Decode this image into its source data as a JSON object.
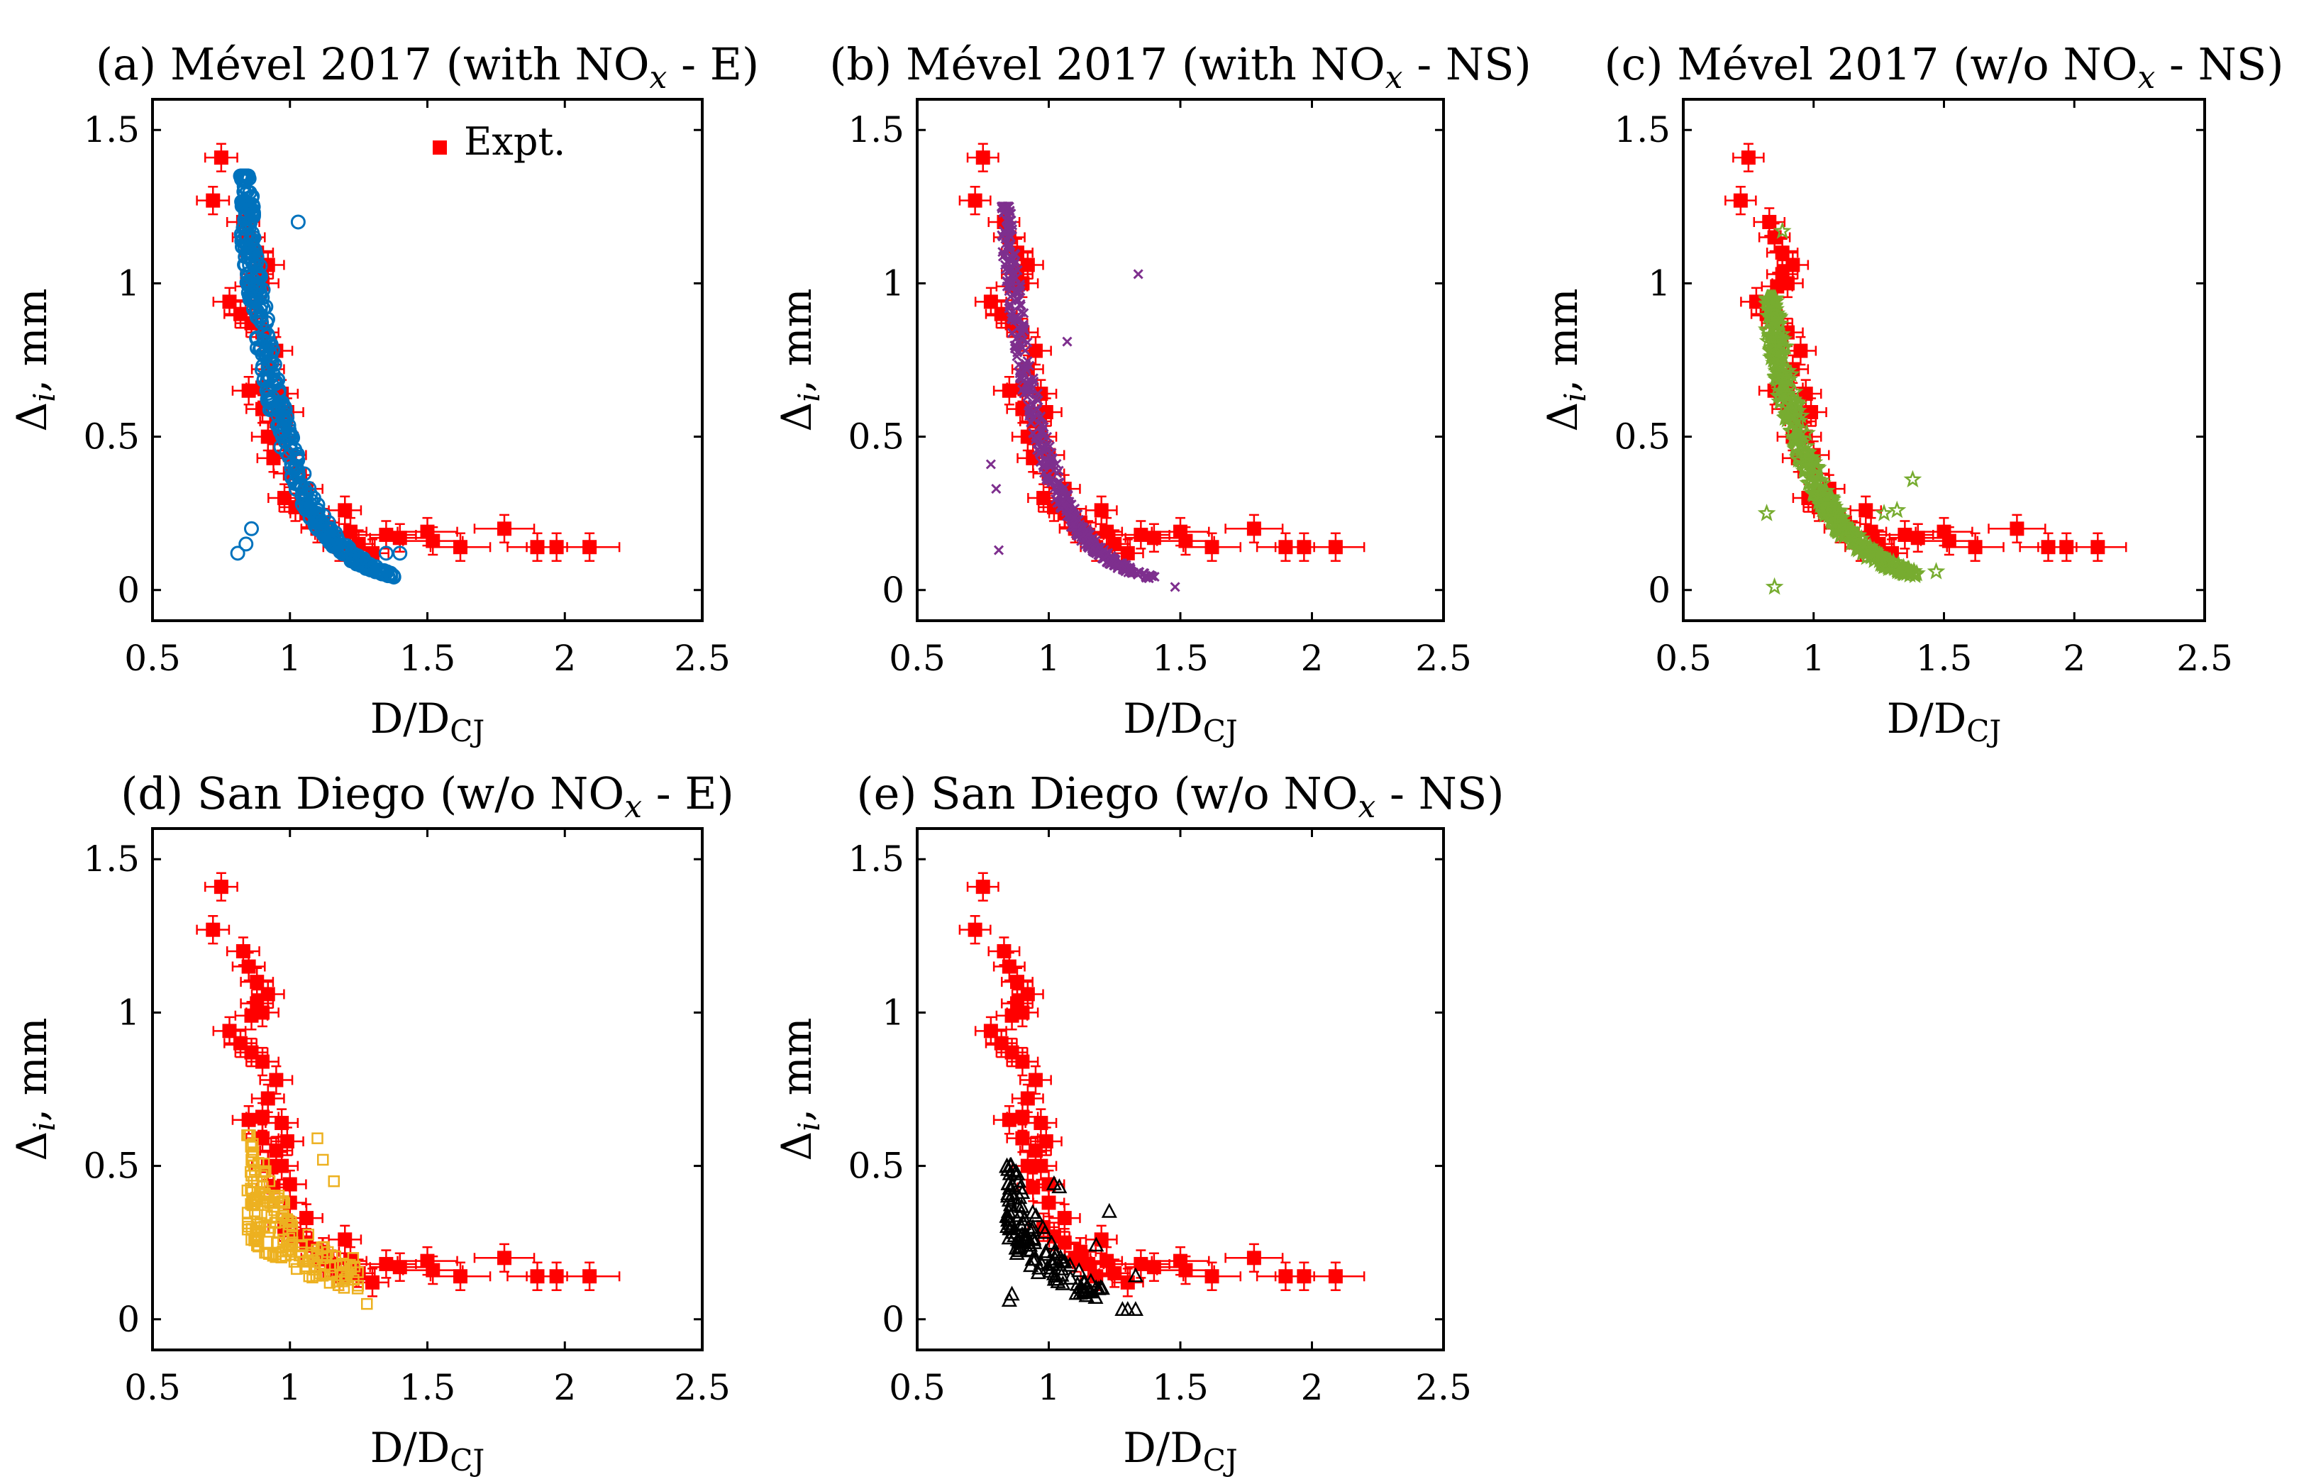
{
  "figure": {
    "ylabel_main": "Δ",
    "ylabel_sub": "i",
    "ylabel_rest": ", mm",
    "xlabel_main": "D/D",
    "xlabel_sub": "CJ",
    "xticks": [
      "0.5",
      "1",
      "1.5",
      "2",
      "2.5"
    ],
    "yticks": [
      "0",
      "0.5",
      "1",
      "1.5"
    ],
    "legend_label": "Expt."
  },
  "chart_data": [
    {
      "id": "a",
      "type": "scatter",
      "title_parts": [
        "(a) Mével 2017 (with NO",
        "x",
        " - E)"
      ],
      "xlim": [
        0.5,
        2.5
      ],
      "ylim": [
        -0.1,
        1.6
      ],
      "sim_marker": "circle",
      "sim_color": "#0072BD",
      "has_legend": true
    },
    {
      "id": "b",
      "type": "scatter",
      "title_parts": [
        "(b) Mével 2017 (with NO",
        "x",
        " - NS)"
      ],
      "xlim": [
        0.5,
        2.5
      ],
      "ylim": [
        -0.1,
        1.6
      ],
      "sim_marker": "cross",
      "sim_color": "#7E2F8E",
      "has_legend": false
    },
    {
      "id": "c",
      "type": "scatter",
      "title_parts": [
        "(c) Mével 2017 (w/o NO",
        "x",
        " - NS)"
      ],
      "xlim": [
        0.5,
        2.5
      ],
      "ylim": [
        -0.1,
        1.6
      ],
      "sim_marker": "star",
      "sim_color": "#77AC30",
      "has_legend": false
    },
    {
      "id": "d",
      "type": "scatter",
      "title_parts": [
        "(d) San Diego (w/o NO",
        "x",
        " - E)"
      ],
      "xlim": [
        0.5,
        2.5
      ],
      "ylim": [
        -0.1,
        1.6
      ],
      "sim_marker": "square",
      "sim_color": "#EDB120",
      "has_legend": false
    },
    {
      "id": "e",
      "type": "scatter",
      "title_parts": [
        "(e) San Diego (w/o NO",
        "x",
        " - NS)"
      ],
      "xlim": [
        0.5,
        2.5
      ],
      "ylim": [
        -0.1,
        1.6
      ],
      "sim_marker": "triangle",
      "sim_color": "#000000",
      "has_legend": false
    }
  ],
  "expt_series": {
    "name": "Expt.",
    "color": "#FF0000",
    "x": [
      0.75,
      0.72,
      0.83,
      0.85,
      0.88,
      0.88,
      0.9,
      0.92,
      0.86,
      0.78,
      0.82,
      0.86,
      0.9,
      0.95,
      0.92,
      0.9,
      0.97,
      0.99,
      0.85,
      0.9,
      0.95,
      0.97,
      1.0,
      0.92,
      0.94,
      1.0,
      1.06,
      0.98,
      1.02,
      1.06,
      1.12,
      1.1,
      1.15,
      1.2,
      1.22,
      1.18,
      1.25,
      1.3,
      1.35,
      1.4,
      1.5,
      1.52,
      1.62,
      1.78,
      1.9,
      1.97,
      2.09
    ],
    "y": [
      1.41,
      1.27,
      1.2,
      1.15,
      1.1,
      1.03,
      1.0,
      1.06,
      0.99,
      0.94,
      0.9,
      0.87,
      0.84,
      0.78,
      0.72,
      0.66,
      0.64,
      0.58,
      0.65,
      0.59,
      0.55,
      0.5,
      0.44,
      0.5,
      0.43,
      0.38,
      0.33,
      0.3,
      0.27,
      0.25,
      0.22,
      0.2,
      0.18,
      0.26,
      0.19,
      0.14,
      0.15,
      0.12,
      0.18,
      0.17,
      0.19,
      0.16,
      0.14,
      0.2,
      0.14,
      0.14,
      0.14
    ]
  }
}
